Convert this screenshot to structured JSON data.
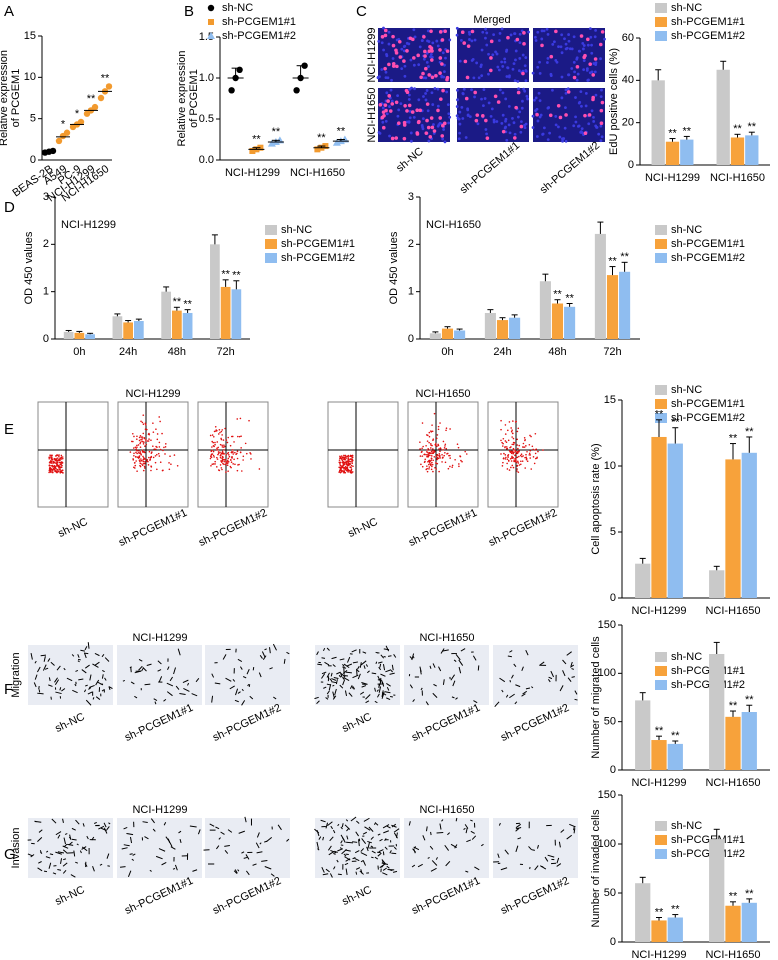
{
  "panels": {
    "letters": [
      "A",
      "B",
      "C",
      "D",
      "E",
      "F",
      "G"
    ],
    "edu": {
      "title": "Merged",
      "rows": [
        "NCI-H1299",
        "NCI-H1650"
      ],
      "cols": [
        "sh-NC",
        "sh-PCGEM1#1",
        "sh-PCGEM1#2"
      ]
    },
    "flow": {
      "titles": [
        "NCI-H1299",
        "NCI-H1650"
      ],
      "cols": [
        "sh-NC",
        "sh-PCGEM1#1",
        "sh-PCGEM1#2"
      ]
    },
    "migration": {
      "row": "Migration",
      "titles": [
        "NCI-H1299",
        "NCI-H1650"
      ],
      "cols": [
        "sh-NC",
        "sh-PCGEM1#1",
        "sh-PCGEM1#2"
      ]
    },
    "invasion": {
      "row": "Invasion",
      "titles": [
        "NCI-H1299",
        "NCI-H1650"
      ],
      "cols": [
        "sh-NC",
        "sh-PCGEM1#1",
        "sh-PCGEM1#2"
      ]
    }
  },
  "chart_data": [
    {
      "type": "dot",
      "ylabel_lines": [
        "Relative expression",
        "of PCGEM1"
      ],
      "categories": [
        "BEAS-2B",
        "A549",
        "PC-9",
        "NCI-H1299",
        "NCI-H1650"
      ],
      "values": [
        1.0,
        2.8,
        4.3,
        6.0,
        8.3
      ],
      "points": [
        [
          0.9,
          1.0,
          1.1
        ],
        [
          2.3,
          2.9,
          3.3
        ],
        [
          4.0,
          4.3,
          4.6
        ],
        [
          5.6,
          6.0,
          6.4
        ],
        [
          7.5,
          8.3,
          8.9
        ]
      ],
      "colors": [
        "#000000",
        "#f29a2e",
        "#f29a2e",
        "#f29a2e",
        "#f29a2e"
      ],
      "annotations": [
        null,
        "*",
        "*",
        "**",
        "**"
      ],
      "ylim": [
        0,
        15
      ],
      "yticks": [
        0,
        5,
        10,
        15
      ]
    },
    {
      "type": "dot",
      "ylabel_lines": [
        "Relative expression",
        "of PCGEM1"
      ],
      "categories": [
        "NCI-H1299",
        "NCI-H1650"
      ],
      "series": [
        {
          "name": "sh-NC",
          "color": "#000000",
          "marker": "circle",
          "values": [
            1.0,
            1.0
          ],
          "errors": [
            0.12,
            0.15
          ],
          "points": [
            [
              0.85,
              1.0,
              1.1
            ],
            [
              0.85,
              1.0,
              1.15
            ]
          ],
          "annotations": [
            null,
            null
          ]
        },
        {
          "name": "sh-PCGEM1#1",
          "color": "#f29a2e",
          "marker": "square",
          "values": [
            0.13,
            0.15
          ],
          "errors": [
            0.02,
            0.02
          ],
          "points": [
            [
              0.11,
              0.13,
              0.15
            ],
            [
              0.13,
              0.15,
              0.17
            ]
          ],
          "annotations": [
            "**",
            "**"
          ]
        },
        {
          "name": "sh-PCGEM1#2",
          "color": "#8fbdf0",
          "marker": "triangle",
          "values": [
            0.22,
            0.23
          ],
          "errors": [
            0.02,
            0.02
          ],
          "points": [
            [
              0.2,
              0.22,
              0.24
            ],
            [
              0.21,
              0.23,
              0.25
            ]
          ],
          "annotations": [
            "**",
            "**"
          ]
        }
      ],
      "ylim": [
        0,
        1.5
      ],
      "yticks": [
        {
          "value": 0,
          "label": "0.0"
        },
        {
          "value": 0.5,
          "label": "0.5"
        },
        {
          "value": 1,
          "label": "1.0"
        },
        {
          "value": 1.5,
          "label": "1.5"
        }
      ]
    },
    {
      "type": "bar",
      "ylabel_lines": [
        "EdU positive cells (%)"
      ],
      "categories": [
        "NCI-H1299",
        "NCI-H1650"
      ],
      "series": [
        {
          "name": "sh-NC",
          "color": "#c9c9c9",
          "values": [
            40,
            45
          ],
          "errors": [
            5,
            4
          ],
          "annotations": [
            null,
            null
          ]
        },
        {
          "name": "sh-PCGEM1#1",
          "color": "#f7a23b",
          "values": [
            11,
            13
          ],
          "errors": [
            1.5,
            1.5
          ],
          "annotations": [
            "**",
            "**"
          ]
        },
        {
          "name": "sh-PCGEM1#2",
          "color": "#8fbdf0",
          "values": [
            12,
            14
          ],
          "errors": [
            1.5,
            1.5
          ],
          "annotations": [
            "**",
            "**"
          ]
        }
      ],
      "ylim": [
        0,
        60
      ],
      "yticks": [
        0,
        20,
        40,
        60
      ]
    },
    {
      "type": "bar",
      "title": "NCI-H1299",
      "ylabel_lines": [
        "OD 450 values"
      ],
      "categories": [
        "0h",
        "24h",
        "48h",
        "72h"
      ],
      "series": [
        {
          "name": "sh-NC",
          "color": "#c9c9c9",
          "values": [
            0.15,
            0.48,
            1.0,
            2.0
          ],
          "errors": [
            0.03,
            0.05,
            0.1,
            0.2
          ],
          "annotations": [
            null,
            null,
            null,
            null
          ]
        },
        {
          "name": "sh-PCGEM1#1",
          "color": "#f7a23b",
          "values": [
            0.13,
            0.35,
            0.6,
            1.1
          ],
          "errors": [
            0.03,
            0.04,
            0.07,
            0.15
          ],
          "annotations": [
            null,
            null,
            "**",
            "**"
          ]
        },
        {
          "name": "sh-PCGEM1#2",
          "color": "#8fbdf0",
          "values": [
            0.1,
            0.38,
            0.55,
            1.05
          ],
          "errors": [
            0.02,
            0.04,
            0.07,
            0.18
          ],
          "annotations": [
            null,
            null,
            "**",
            "**"
          ]
        }
      ],
      "ylim": [
        0,
        3
      ],
      "yticks": [
        0,
        1,
        2,
        3
      ]
    },
    {
      "type": "bar",
      "title": "NCI-H1650",
      "ylabel_lines": [
        "OD 450 values"
      ],
      "categories": [
        "0h",
        "24h",
        "48h",
        "72h"
      ],
      "series": [
        {
          "name": "sh-NC",
          "color": "#c9c9c9",
          "values": [
            0.12,
            0.55,
            1.22,
            2.22
          ],
          "errors": [
            0.03,
            0.07,
            0.15,
            0.25
          ],
          "annotations": [
            null,
            null,
            null,
            null
          ]
        },
        {
          "name": "sh-PCGEM1#1",
          "color": "#f7a23b",
          "values": [
            0.22,
            0.4,
            0.75,
            1.35
          ],
          "errors": [
            0.04,
            0.05,
            0.08,
            0.18
          ],
          "annotations": [
            null,
            null,
            "**",
            "**"
          ]
        },
        {
          "name": "sh-PCGEM1#2",
          "color": "#8fbdf0",
          "values": [
            0.18,
            0.45,
            0.68,
            1.42
          ],
          "errors": [
            0.03,
            0.06,
            0.07,
            0.2
          ],
          "annotations": [
            null,
            null,
            "**",
            "**"
          ]
        }
      ],
      "ylim": [
        0,
        3
      ],
      "yticks": [
        0,
        1,
        2,
        3
      ]
    },
    {
      "type": "bar",
      "ylabel_lines": [
        "Cell apoptosis rate (%)"
      ],
      "categories": [
        "NCI-H1299",
        "NCI-H1650"
      ],
      "series": [
        {
          "name": "sh-NC",
          "color": "#c9c9c9",
          "values": [
            2.6,
            2.1
          ],
          "errors": [
            0.4,
            0.3
          ],
          "annotations": [
            null,
            null
          ]
        },
        {
          "name": "sh-PCGEM1#1",
          "color": "#f7a23b",
          "values": [
            12.2,
            10.5
          ],
          "errors": [
            1.3,
            1.2
          ],
          "annotations": [
            "**",
            "**"
          ]
        },
        {
          "name": "sh-PCGEM1#2",
          "color": "#8fbdf0",
          "values": [
            11.7,
            11.0
          ],
          "errors": [
            1.2,
            1.2
          ],
          "annotations": [
            "**",
            "**"
          ]
        }
      ],
      "ylim": [
        0,
        15
      ],
      "yticks": [
        0,
        5,
        10,
        15
      ]
    },
    {
      "type": "bar",
      "ylabel_lines": [
        "Number of migrated cells"
      ],
      "categories": [
        "NCI-H1299",
        "NCI-H1650"
      ],
      "series": [
        {
          "name": "sh-NC",
          "color": "#c9c9c9",
          "values": [
            72,
            120
          ],
          "errors": [
            8,
            12
          ],
          "annotations": [
            null,
            null
          ]
        },
        {
          "name": "sh-PCGEM1#1",
          "color": "#f7a23b",
          "values": [
            31,
            55
          ],
          "errors": [
            4,
            6
          ],
          "annotations": [
            "**",
            "**"
          ]
        },
        {
          "name": "sh-PCGEM1#2",
          "color": "#8fbdf0",
          "values": [
            27,
            60
          ],
          "errors": [
            3,
            7
          ],
          "annotations": [
            "**",
            "**"
          ]
        }
      ],
      "ylim": [
        0,
        150
      ],
      "yticks": [
        0,
        50,
        100,
        150
      ]
    },
    {
      "type": "bar",
      "ylabel_lines": [
        "Number of invaded cells"
      ],
      "categories": [
        "NCI-H1299",
        "NCI-H1650"
      ],
      "series": [
        {
          "name": "sh-NC",
          "color": "#c9c9c9",
          "values": [
            60,
            105
          ],
          "errors": [
            6,
            10
          ],
          "annotations": [
            null,
            null
          ]
        },
        {
          "name": "sh-PCGEM1#1",
          "color": "#f7a23b",
          "values": [
            22,
            37
          ],
          "errors": [
            3,
            4
          ],
          "annotations": [
            "**",
            "**"
          ]
        },
        {
          "name": "sh-PCGEM1#2",
          "color": "#8fbdf0",
          "values": [
            25,
            40
          ],
          "errors": [
            3,
            4
          ],
          "annotations": [
            "**",
            "**"
          ]
        }
      ],
      "ylim": [
        0,
        150
      ],
      "yticks": [
        0,
        50,
        100,
        150
      ]
    }
  ]
}
